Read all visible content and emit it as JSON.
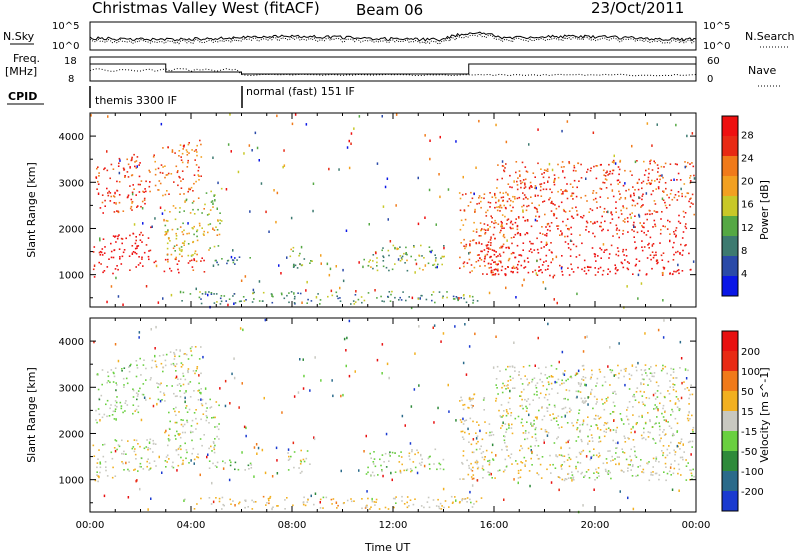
{
  "header": {
    "site": "Christmas Valley West (fitACF)",
    "beam": "Beam 06",
    "date": "23/Oct/2011"
  },
  "strip": {
    "nsky_label": "N.Sky",
    "nsearch_label": "N.Search",
    "n_ticks_left": [
      "10^5",
      "10^0"
    ],
    "n_ticks_right": [
      "10^5",
      "10^0"
    ],
    "freq_label": [
      "Freq.",
      "[MHz]"
    ],
    "freq_ticks": [
      "18",
      "8"
    ],
    "nave_label": "Nave",
    "nave_ticks": [
      "60",
      "0"
    ],
    "cpid_label": "CPID",
    "modes": [
      {
        "name": "themis 3300 IF",
        "start_hour": 0,
        "end_hour": 6
      },
      {
        "name": "normal (fast) 151 IF",
        "start_hour": 6,
        "end_hour": 24
      }
    ]
  },
  "chart_data": [
    {
      "type": "heatmap",
      "title": "",
      "xlabel": "",
      "ylabel": "Slant Range [km]",
      "xlim": [
        0,
        24
      ],
      "ylim": [
        300,
        4500
      ],
      "x_tick_labels": [
        "00:00",
        "04:00",
        "08:00",
        "12:00",
        "16:00",
        "20:00",
        "00:00"
      ],
      "y_ticks": [
        1000,
        2000,
        3000,
        4000
      ],
      "colorbar": {
        "label": "Power [dB]",
        "ticks": [
          "4",
          "8",
          "12",
          "16",
          "20",
          "24",
          "28"
        ],
        "range": [
          0,
          30
        ],
        "colors": [
          "#0a17e6",
          "#2a4aa8",
          "#3d7a70",
          "#55a844",
          "#c8c828",
          "#f2a020",
          "#f07a1a",
          "#e82a14",
          "#ee1010"
        ]
      },
      "blobs": [
        {
          "t0": 0.1,
          "t1": 2.6,
          "r0": 950,
          "r1": 1800,
          "value": 29,
          "slope": 280
        },
        {
          "t0": 0.2,
          "t1": 2.2,
          "r0": 2200,
          "r1": 3400,
          "value": 25,
          "slope": 300
        },
        {
          "t0": 2.3,
          "t1": 4.4,
          "r0": 2600,
          "r1": 3700,
          "value": 22,
          "slope": 250
        },
        {
          "t0": 2.9,
          "t1": 5.2,
          "r0": 1200,
          "r1": 2500,
          "value": 16,
          "slope": 420
        },
        {
          "t0": 2.9,
          "t1": 4.5,
          "r0": 1050,
          "r1": 1400,
          "value": 28,
          "slope": 0
        },
        {
          "t0": 4.5,
          "t1": 6.5,
          "r0": 1200,
          "r1": 1400,
          "value": 8,
          "slope": 0
        },
        {
          "t0": 7.8,
          "t1": 8.8,
          "r0": 1150,
          "r1": 1650,
          "value": 12,
          "slope": 0
        },
        {
          "t0": 10.8,
          "t1": 14.0,
          "r0": 1100,
          "r1": 1650,
          "value": 12,
          "slope": 0
        },
        {
          "t0": 3.5,
          "t1": 15.5,
          "r0": 380,
          "r1": 650,
          "value": 10,
          "slope": 0
        },
        {
          "t0": 14.6,
          "t1": 16.8,
          "r0": 1000,
          "r1": 2900,
          "value": 22,
          "slope": 0
        },
        {
          "t0": 15.2,
          "t1": 23.9,
          "r0": 1000,
          "r1": 1750,
          "value": 29,
          "slope": 0
        },
        {
          "t0": 15.6,
          "t1": 23.9,
          "r0": 1800,
          "r1": 2300,
          "value": 27,
          "slope": 0
        },
        {
          "t0": 16.0,
          "t1": 23.9,
          "r0": 2300,
          "r1": 3500,
          "value": 24,
          "slope": 0
        }
      ]
    },
    {
      "type": "heatmap",
      "title": "",
      "xlabel": "Time UT",
      "ylabel": "Slant Range [km]",
      "xlim": [
        0,
        24
      ],
      "ylim": [
        300,
        4500
      ],
      "x_tick_labels": [
        "00:00",
        "04:00",
        "08:00",
        "12:00",
        "16:00",
        "20:00",
        "00:00"
      ],
      "y_ticks": [
        1000,
        2000,
        3000,
        4000
      ],
      "colorbar": {
        "label": "Velocity [m s^-1]",
        "ticks": [
          "200",
          "100",
          "50",
          "15",
          "-15",
          "-50",
          "-100",
          "-200"
        ],
        "range": [
          -250,
          250
        ],
        "colors": [
          "#1a3ad0",
          "#2a6a8a",
          "#2e8a3a",
          "#6ad040",
          "#c8c8c0",
          "#f2b020",
          "#f07a1a",
          "#e82a14",
          "#e81010"
        ]
      },
      "blobs": [
        {
          "t0": 0.1,
          "t1": 2.6,
          "r0": 950,
          "r1": 1800,
          "value": 0,
          "slope": 280
        },
        {
          "t0": 0.2,
          "t1": 2.2,
          "r0": 2200,
          "r1": 3400,
          "value": -30,
          "slope": 300
        },
        {
          "t0": 2.3,
          "t1": 4.4,
          "r0": 2600,
          "r1": 3700,
          "value": 0,
          "slope": 250
        },
        {
          "t0": 2.9,
          "t1": 5.2,
          "r0": 1200,
          "r1": 2500,
          "value": 0,
          "slope": 420
        },
        {
          "t0": 4.5,
          "t1": 6.5,
          "r0": 1200,
          "r1": 1450,
          "value": -40,
          "slope": 0
        },
        {
          "t0": 7.8,
          "t1": 8.8,
          "r0": 1150,
          "r1": 1650,
          "value": 0,
          "slope": 0
        },
        {
          "t0": 10.8,
          "t1": 12.2,
          "r0": 1100,
          "r1": 1650,
          "value": -40,
          "slope": 0
        },
        {
          "t0": 12.2,
          "t1": 14.0,
          "r0": 1150,
          "r1": 1700,
          "value": 0,
          "slope": 0
        },
        {
          "t0": 3.5,
          "t1": 15.5,
          "r0": 380,
          "r1": 650,
          "value": 30,
          "slope": 0
        },
        {
          "t0": 14.6,
          "t1": 15.6,
          "r0": 1000,
          "r1": 2900,
          "value": 30,
          "slope": 0
        },
        {
          "t0": 15.2,
          "t1": 23.9,
          "r0": 1000,
          "r1": 1750,
          "value": 0,
          "slope": 0
        },
        {
          "t0": 15.6,
          "t1": 23.9,
          "r0": 1800,
          "r1": 2300,
          "value": 0,
          "slope": 0
        },
        {
          "t0": 16.0,
          "t1": 23.9,
          "r0": 2300,
          "r1": 3500,
          "value": 0,
          "slope": 0
        }
      ]
    }
  ]
}
